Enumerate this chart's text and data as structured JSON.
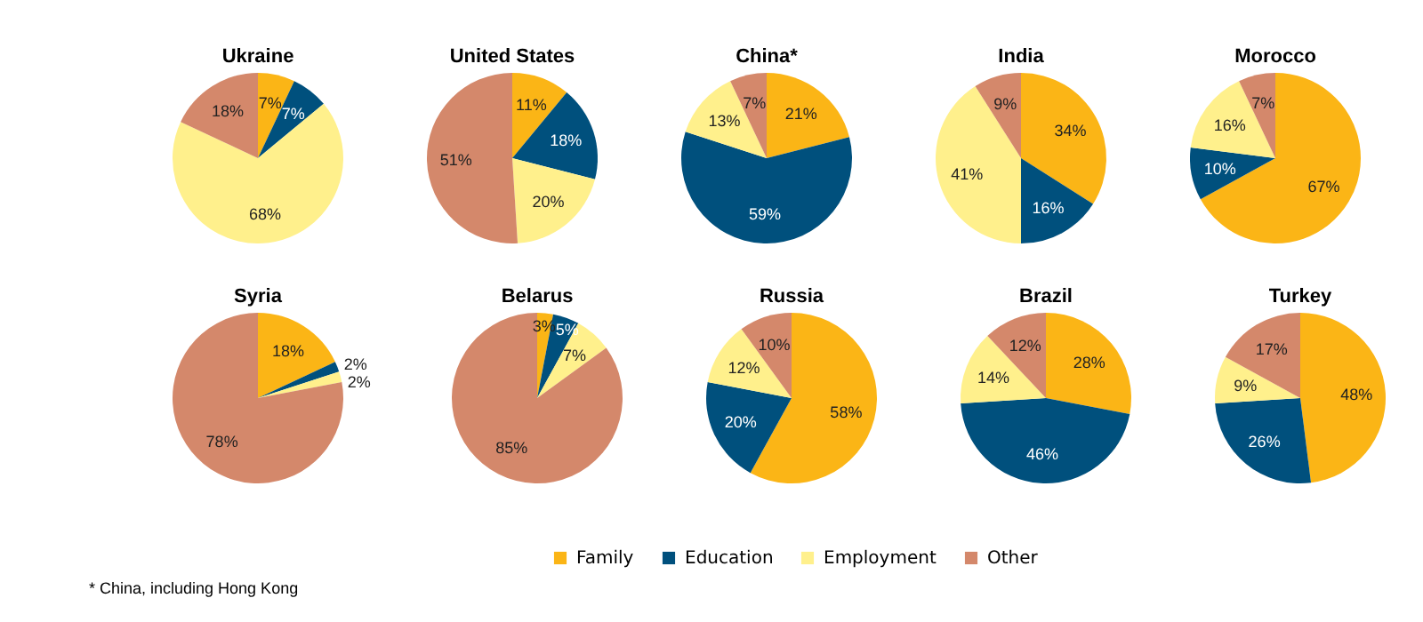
{
  "chart_data": [
    {
      "type": "pie",
      "title": "Ukraine",
      "categories": [
        "Family",
        "Education",
        "Employment",
        "Other"
      ],
      "values": [
        7,
        7,
        68,
        18
      ],
      "value_labels": [
        "7%",
        "7%",
        "68%",
        "18%"
      ],
      "colors": [
        "#fbb516",
        "#00507d",
        "#fff08c",
        "#d4886b"
      ],
      "legend": "bottom"
    },
    {
      "type": "pie",
      "title": "United States",
      "categories": [
        null,
        null,
        null,
        null
      ],
      "values": [
        11,
        18,
        20,
        51
      ],
      "value_labels": [
        "11%",
        "18%",
        "20%",
        "51%"
      ],
      "colors": [
        "#fbb516",
        "#00507d",
        "#fff08c",
        "#d4886b"
      ]
    },
    {
      "type": "pie",
      "title": "China*",
      "categories": [
        null,
        null,
        null,
        null
      ],
      "values": [
        21,
        59,
        13,
        7
      ],
      "value_labels": [
        "21%",
        "59%",
        "13%",
        "7%"
      ],
      "colors": [
        "#fbb516",
        "#00507d",
        "#fff08c",
        "#d4886b"
      ],
      "annotations": [
        "* China, including Hong Kong"
      ]
    },
    {
      "type": "pie",
      "title": "India",
      "categories": [
        null,
        null,
        null,
        null
      ],
      "values": [
        34,
        16,
        41,
        9
      ],
      "value_labels": [
        "34%",
        "16%",
        "41%",
        "9%"
      ],
      "colors": [
        "#fbb516",
        "#00507d",
        "#fff08c",
        "#d4886b"
      ]
    },
    {
      "type": "pie",
      "title": "Morocco",
      "categories": [
        null,
        null,
        null,
        null
      ],
      "values": [
        67,
        10,
        16,
        7
      ],
      "value_labels": [
        "67%",
        "10%",
        "16%",
        "7%"
      ],
      "colors": [
        "#fbb516",
        "#00507d",
        "#fff08c",
        "#d4886b"
      ]
    },
    {
      "type": "pie",
      "title": "Syria",
      "categories": [
        null,
        null,
        null,
        null
      ],
      "values": [
        18,
        2,
        2,
        78
      ],
      "value_labels": [
        "18%",
        "2%",
        "2%",
        "78%"
      ],
      "colors": [
        "#fbb516",
        "#00507d",
        "#fff08c",
        "#d4886b"
      ]
    },
    {
      "type": "pie",
      "title": "Belarus",
      "categories": [
        null,
        null,
        null,
        null
      ],
      "values": [
        3,
        5,
        7,
        85
      ],
      "value_labels": [
        "3%",
        "5%",
        "7%",
        "85%"
      ],
      "colors": [
        "#fbb516",
        "#00507d",
        "#fff08c",
        "#d4886b"
      ]
    },
    {
      "type": "pie",
      "title": "Russia",
      "categories": [
        null,
        null,
        null,
        null
      ],
      "values": [
        58,
        20,
        12,
        10
      ],
      "value_labels": [
        "58%",
        "20%",
        "12%",
        "10%"
      ],
      "colors": [
        "#fbb516",
        "#00507d",
        "#fff08c",
        "#d4886b"
      ]
    },
    {
      "type": "pie",
      "title": "Brazil",
      "categories": [
        null,
        null,
        null,
        null
      ],
      "values": [
        28,
        46,
        14,
        12
      ],
      "value_labels": [
        "28%",
        "46%",
        "14%",
        "12%"
      ],
      "colors": [
        "#fbb516",
        "#00507d",
        "#fff08c",
        "#d4886b"
      ]
    },
    {
      "type": "pie",
      "title": "Turkey",
      "categories": [
        null,
        null,
        null,
        null
      ],
      "values": [
        48,
        26,
        9,
        17
      ],
      "value_labels": [
        "48%",
        "26%",
        "9%",
        "17%"
      ],
      "colors": [
        "#fbb516",
        "#00507d",
        "#fff08c",
        "#d4886b"
      ]
    }
  ]
}
